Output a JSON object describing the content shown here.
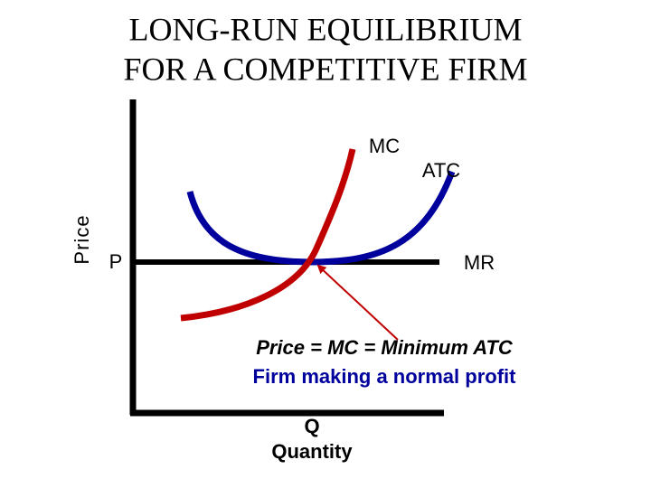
{
  "title": {
    "line1": "LONG-RUN EQUILIBRIUM",
    "line2": "FOR A COMPETITIVE FIRM"
  },
  "axes": {
    "y_label": "Price",
    "x_label_short": "Q",
    "x_label": "Quantity",
    "price_level": "P"
  },
  "curves": {
    "mc": "MC",
    "atc": "ATC",
    "mr": "MR"
  },
  "annotation": {
    "line1": "Price = MC = Minimum ATC",
    "line2": "Firm making a normal profit"
  }
}
